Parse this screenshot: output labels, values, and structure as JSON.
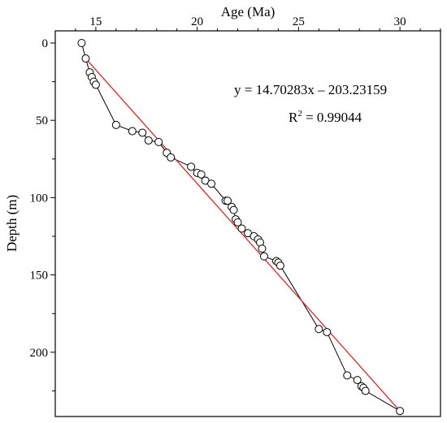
{
  "chart_data": {
    "type": "scatter",
    "xlabel": "Age (Ma)",
    "ylabel": "Depth (m)",
    "xlim": [
      13,
      32
    ],
    "ylim": [
      0,
      240
    ],
    "y_inverted": true,
    "x_axis_position": "top",
    "grid": false,
    "x_ticks": [
      15,
      20,
      25,
      30
    ],
    "y_ticks": [
      0,
      50,
      100,
      150,
      200
    ],
    "series": [
      {
        "style": "open-circle-markers-connected",
        "points": [
          [
            14.3,
            0
          ],
          [
            14.5,
            10
          ],
          [
            14.7,
            19
          ],
          [
            14.8,
            22
          ],
          [
            14.9,
            25
          ],
          [
            15.0,
            27
          ],
          [
            16.0,
            53
          ],
          [
            16.8,
            57
          ],
          [
            17.3,
            58
          ],
          [
            17.6,
            63
          ],
          [
            18.1,
            64
          ],
          [
            18.5,
            71
          ],
          [
            18.7,
            74
          ],
          [
            19.7,
            80
          ],
          [
            20.0,
            84
          ],
          [
            20.2,
            85
          ],
          [
            20.4,
            89
          ],
          [
            20.7,
            91
          ],
          [
            21.4,
            102
          ],
          [
            21.5,
            102
          ],
          [
            21.7,
            106
          ],
          [
            21.8,
            108
          ],
          [
            21.9,
            114
          ],
          [
            22.0,
            116
          ],
          [
            22.2,
            120
          ],
          [
            22.5,
            123
          ],
          [
            22.8,
            125
          ],
          [
            23.0,
            127
          ],
          [
            23.1,
            129
          ],
          [
            23.2,
            133
          ],
          [
            23.3,
            138
          ],
          [
            23.9,
            141
          ],
          [
            24.0,
            142
          ],
          [
            24.1,
            144
          ],
          [
            26.0,
            185
          ],
          [
            26.4,
            187
          ],
          [
            27.4,
            215
          ],
          [
            27.9,
            218
          ],
          [
            28.1,
            222
          ],
          [
            28.2,
            223
          ],
          [
            28.3,
            225
          ],
          [
            30.0,
            238
          ]
        ]
      }
    ],
    "fit_line": {
      "color": "#d62728",
      "x": [
        14.5,
        30.0
      ],
      "y": [
        10,
        238
      ]
    },
    "annotations": [
      {
        "text": "y = 14.70283x – 203.23159"
      },
      {
        "text_main": "R",
        "text_sup": "2",
        "text_rest": " = 0.99044"
      }
    ]
  }
}
